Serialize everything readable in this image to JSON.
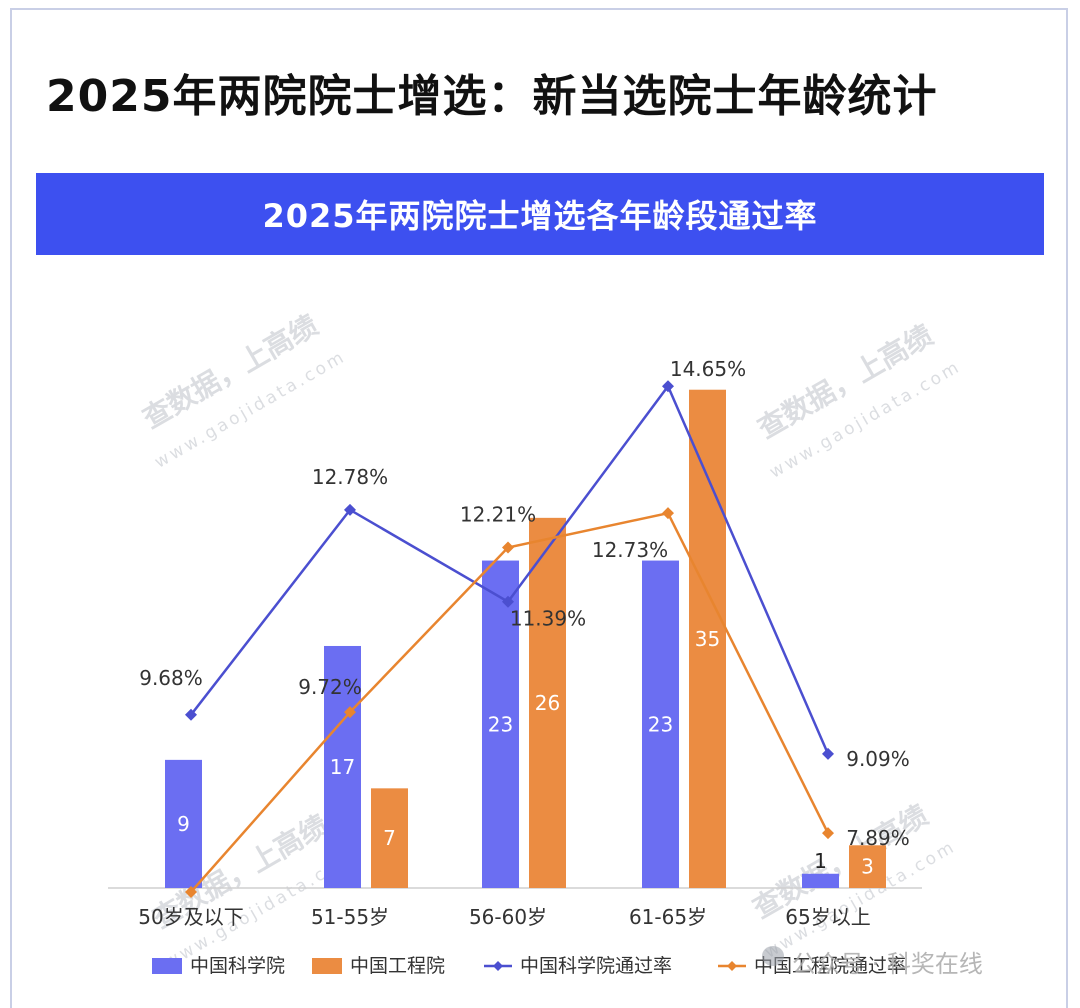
{
  "main_title": "2025年两院院士增选：新当选院士年龄统计",
  "banner_title": "2025年两院院士增选各年龄段通过率",
  "watermark": {
    "text": "查数据，上高绩",
    "url": "www.gaojidata.com",
    "wechat": "公众号 · 科奖在线"
  },
  "colors": {
    "cas": "#6b6ef2",
    "cae": "#eb8c42",
    "cas_line": "#4b4fd0",
    "cae_line": "#e8852f",
    "banner": "#3d50f0"
  },
  "chart_data": {
    "type": "bar+line",
    "title": "2025年两院院士增选各年龄段通过率",
    "categories": [
      "50岁及以下",
      "51-55岁",
      "56-60岁",
      "61-65岁",
      "65岁以上"
    ],
    "bar_ylim": [
      0,
      38
    ],
    "line_ylim": [
      7.0,
      15.5
    ],
    "bar_series": [
      {
        "name": "中国科学院",
        "values": [
          9,
          17,
          23,
          23,
          1
        ]
      },
      {
        "name": "中国工程院",
        "values": [
          0,
          7,
          26,
          35,
          3
        ]
      }
    ],
    "line_series": [
      {
        "name": "中国科学院通过率",
        "values": [
          9.68,
          12.78,
          11.39,
          14.65,
          9.09
        ],
        "labels": [
          "9.68%",
          "12.78%",
          "11.39%",
          "14.65%",
          "9.09%"
        ]
      },
      {
        "name": "中国工程院通过率",
        "values": [
          7.0,
          9.72,
          12.21,
          12.73,
          7.89
        ],
        "labels": [
          "",
          "9.72%",
          "12.21%",
          "12.73%",
          "7.89%"
        ]
      }
    ],
    "legend": [
      "中国科学院",
      "中国工程院",
      "中国科学院通过率",
      "中国工程院通过率"
    ],
    "legend_position": "bottom"
  }
}
